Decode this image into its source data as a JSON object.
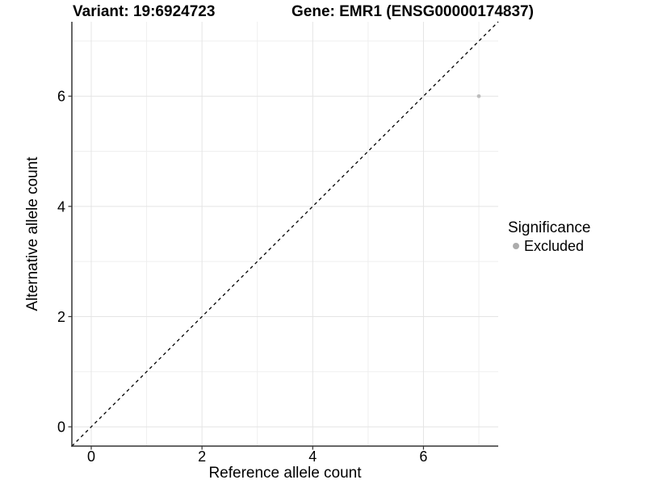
{
  "chart_data": {
    "type": "scatter",
    "title_left": "Variant: 19:6924723",
    "title_right": "Gene: EMR1 (ENSG00000174837)",
    "xlabel": "Reference allele count",
    "ylabel": "Alternative allele count",
    "xlim": [
      -0.35,
      7.35
    ],
    "ylim": [
      -0.35,
      7.35
    ],
    "x_ticks": [
      0,
      2,
      4,
      6
    ],
    "y_ticks": [
      0,
      2,
      4,
      6
    ],
    "minor_gridlines": [
      1,
      3,
      5,
      7
    ],
    "grid": true,
    "legend_position": "right",
    "identity_line": {
      "slope": 1,
      "intercept": 0,
      "style": "dashed",
      "color": "#000000"
    },
    "points": [
      {
        "x": 7,
        "y": 6,
        "significance": "Excluded"
      }
    ],
    "legend": {
      "title": "Significance",
      "items": [
        {
          "label": "Excluded",
          "color": "#acacac"
        }
      ]
    },
    "colors": {
      "point_excluded": "#bdbdbd",
      "grid_major": "#e4e4e4",
      "grid_minor": "#efefef",
      "axis_line": "#333333",
      "tick_mark": "#333333",
      "text": "#000000",
      "background": "#ffffff"
    }
  }
}
